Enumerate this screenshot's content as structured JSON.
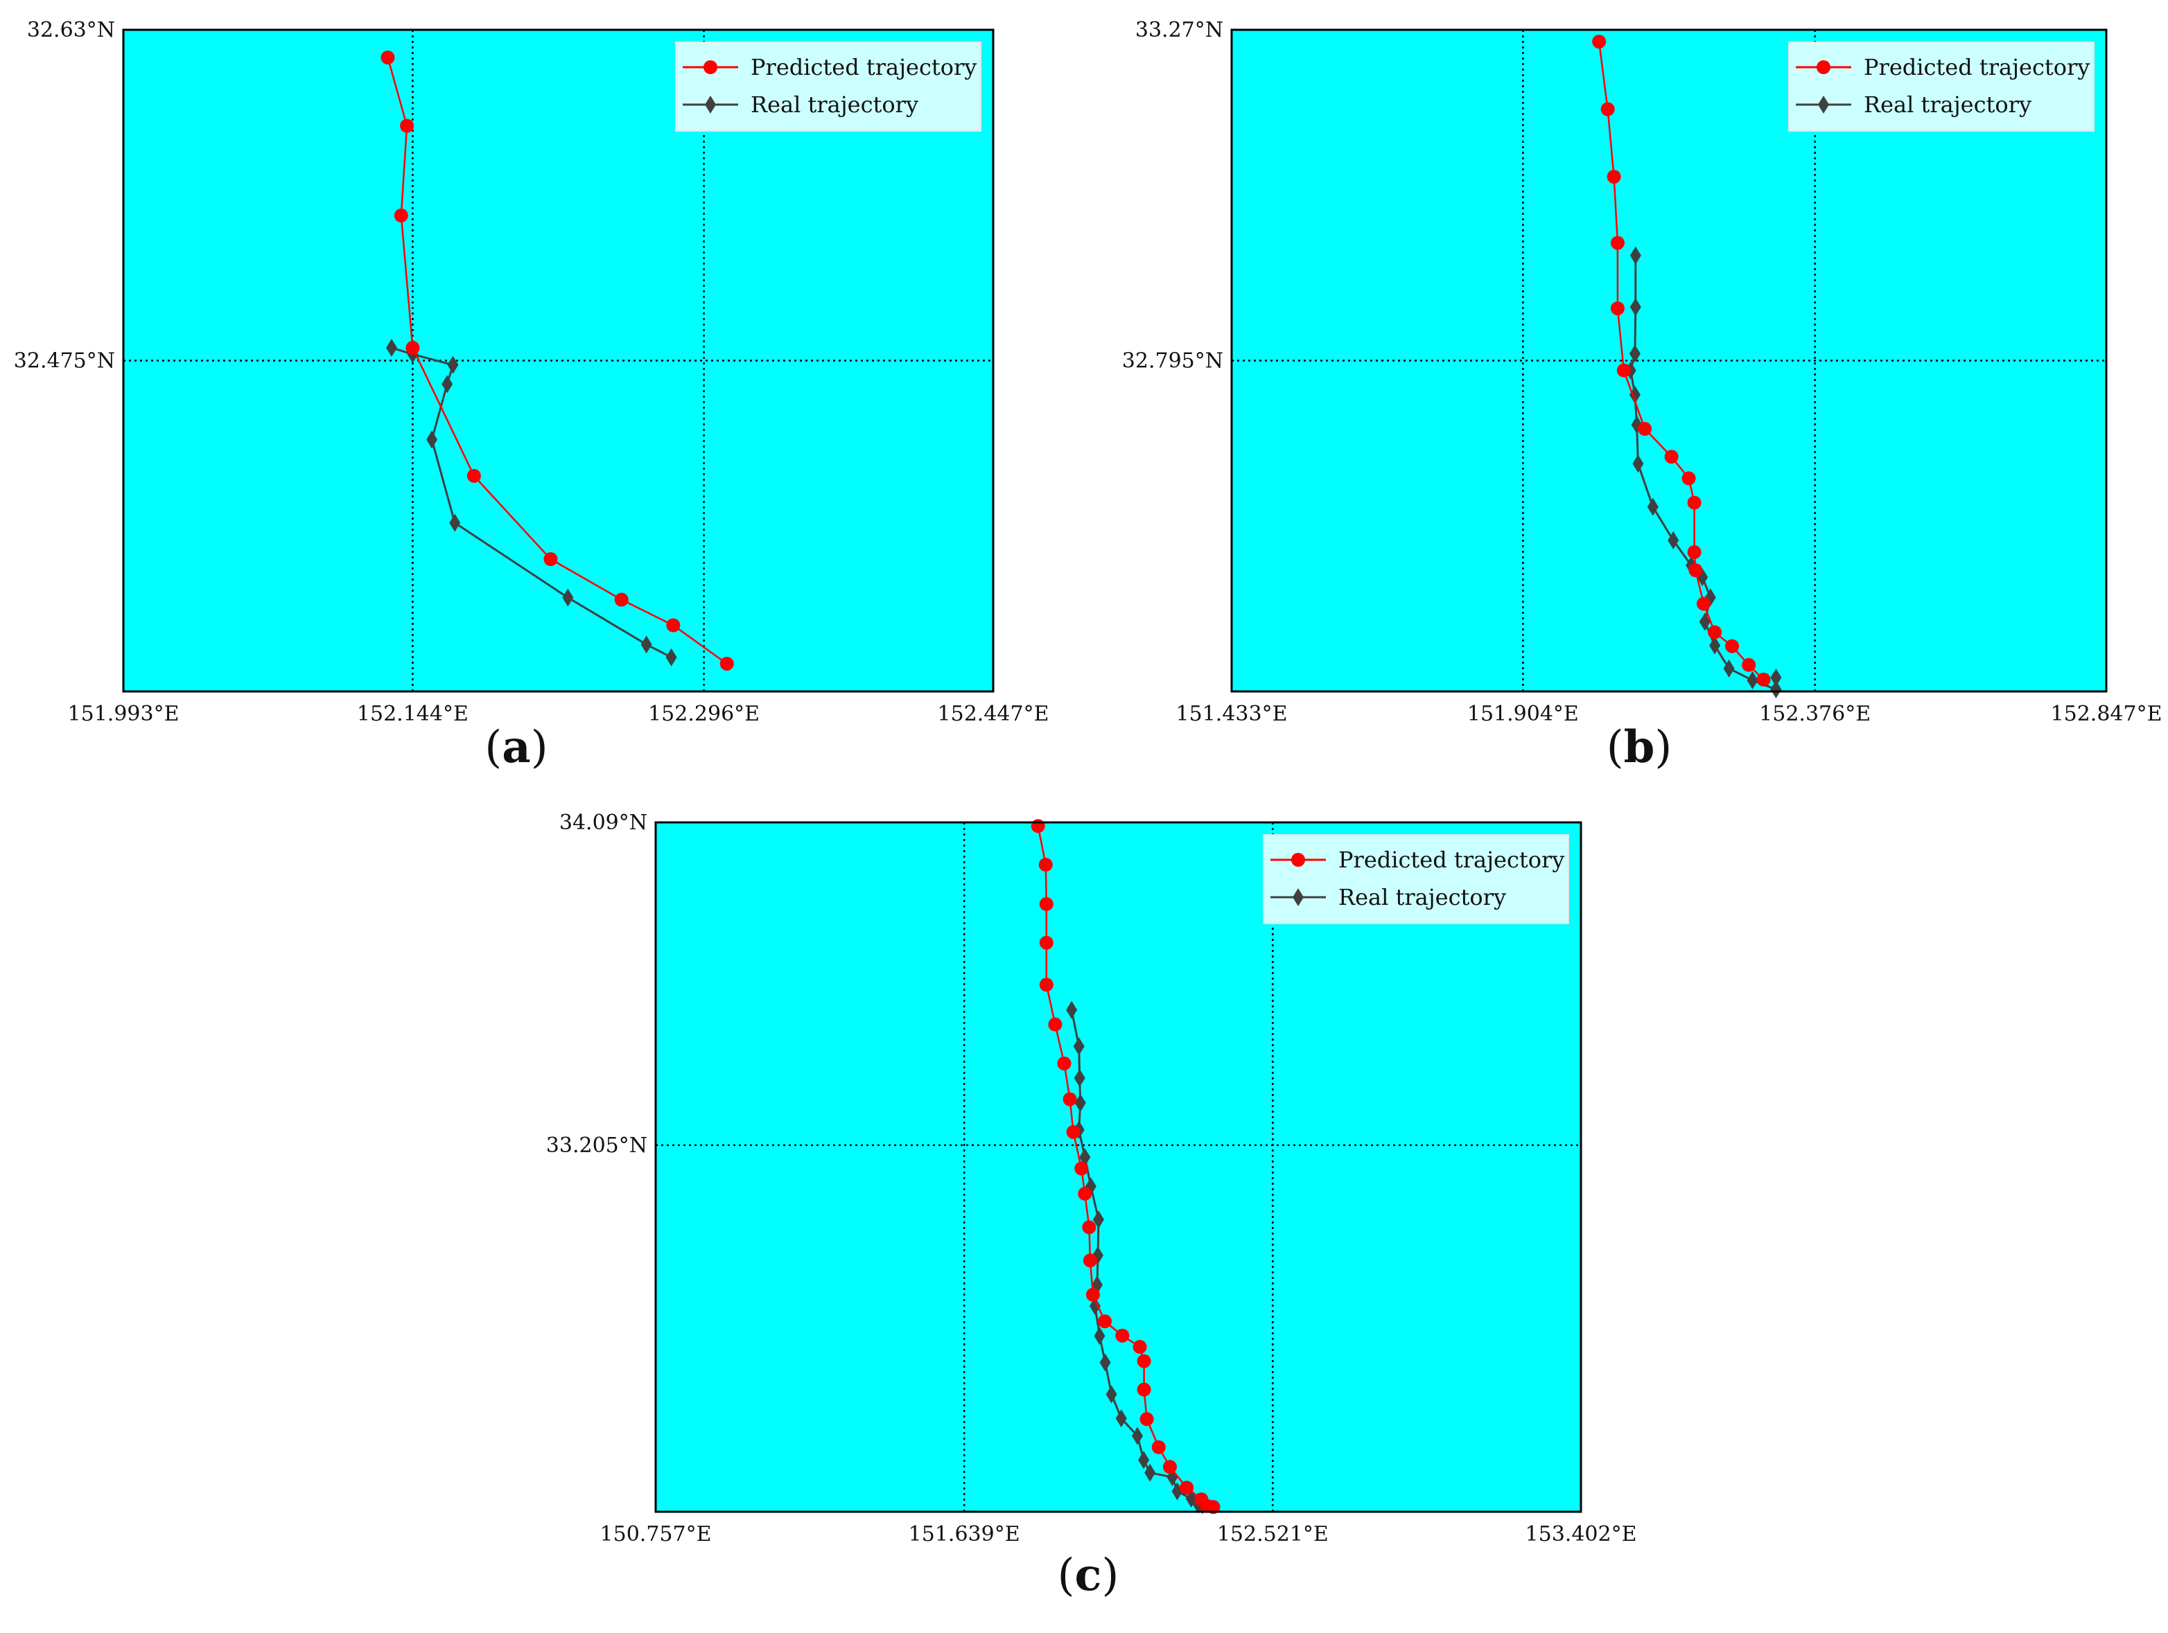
{
  "colors": {
    "background": "#00ffff",
    "predicted": "#ff0000",
    "real": "#404040",
    "legend_bg": "#ccffff",
    "grid": "#000000"
  },
  "chart_data": [
    {
      "panel": "a",
      "caption": {
        "open": "(",
        "letter": "a",
        "close": ")"
      },
      "type": "line",
      "xlim": [
        151.993,
        152.447
      ],
      "ylim": [
        32.32,
        32.63
      ],
      "xticks": [
        151.993,
        152.144,
        152.296,
        152.447
      ],
      "xtick_labels": [
        "151.993°E",
        "152.144°E",
        "152.296°E",
        "152.447°E"
      ],
      "yticks": [
        32.63,
        32.475
      ],
      "ytick_labels": [
        "32.63°N",
        "32.475°N"
      ],
      "grid": {
        "x": [
          152.144,
          152.296
        ],
        "y": [
          32.475
        ]
      },
      "legend": {
        "position": "top-right",
        "entries": [
          "Predicted trajectory",
          "Real trajectory"
        ]
      },
      "series": [
        {
          "name": "Predicted trajectory",
          "marker": "circle",
          "points": [
            [
              152.131,
              32.617
            ],
            [
              152.141,
              32.585
            ],
            [
              152.138,
              32.543
            ],
            [
              152.144,
              32.481
            ],
            [
              152.176,
              32.421
            ],
            [
              152.216,
              32.382
            ],
            [
              152.253,
              32.363
            ],
            [
              152.28,
              32.351
            ],
            [
              152.308,
              32.333
            ]
          ]
        },
        {
          "name": "Real trajectory",
          "marker": "diamond",
          "points": [
            [
              152.133,
              32.481
            ],
            [
              152.144,
              32.478
            ],
            [
              152.165,
              32.473
            ],
            [
              152.162,
              32.464
            ],
            [
              152.154,
              32.438
            ],
            [
              152.166,
              32.399
            ],
            [
              152.225,
              32.364
            ],
            [
              152.266,
              32.342
            ],
            [
              152.279,
              32.336
            ]
          ]
        }
      ]
    },
    {
      "panel": "b",
      "caption": {
        "open": "(",
        "letter": "b",
        "close": ")"
      },
      "type": "line",
      "xlim": [
        151.433,
        152.847
      ],
      "ylim": [
        32.32,
        33.27
      ],
      "xticks": [
        151.433,
        151.904,
        152.376,
        152.847
      ],
      "xtick_labels": [
        "151.433°E",
        "151.904°E",
        "152.376°E",
        "152.847°E"
      ],
      "yticks": [
        33.27,
        32.795
      ],
      "ytick_labels": [
        "33.27°N",
        "32.795°N"
      ],
      "grid": {
        "x": [
          151.904,
          152.376
        ],
        "y": [
          32.795
        ]
      },
      "legend": {
        "position": "top-right",
        "entries": [
          "Predicted trajectory",
          "Real trajectory"
        ]
      },
      "series": [
        {
          "name": "Predicted trajectory",
          "marker": "circle",
          "points": [
            [
              152.027,
              33.253
            ],
            [
              152.041,
              33.156
            ],
            [
              152.051,
              33.059
            ],
            [
              152.057,
              32.964
            ],
            [
              152.057,
              32.87
            ],
            [
              152.067,
              32.781
            ],
            [
              152.101,
              32.697
            ],
            [
              152.144,
              32.657
            ],
            [
              152.172,
              32.626
            ],
            [
              152.181,
              32.591
            ],
            [
              152.181,
              32.52
            ],
            [
              152.183,
              32.494
            ],
            [
              152.196,
              32.446
            ],
            [
              152.214,
              32.405
            ],
            [
              152.242,
              32.385
            ],
            [
              152.269,
              32.358
            ],
            [
              152.293,
              32.337
            ]
          ]
        },
        {
          "name": "Real trajectory",
          "marker": "diamond",
          "points": [
            [
              152.086,
              32.946
            ],
            [
              152.086,
              32.872
            ],
            [
              152.085,
              32.805
            ],
            [
              152.078,
              32.781
            ],
            [
              152.085,
              32.746
            ],
            [
              152.088,
              32.703
            ],
            [
              152.09,
              32.647
            ],
            [
              152.114,
              32.585
            ],
            [
              152.147,
              32.537
            ],
            [
              152.176,
              32.501
            ],
            [
              152.194,
              32.484
            ],
            [
              152.207,
              32.455
            ],
            [
              152.198,
              32.42
            ],
            [
              152.214,
              32.386
            ],
            [
              152.237,
              32.353
            ],
            [
              152.275,
              32.336
            ],
            [
              152.313,
              32.323
            ],
            [
              152.313,
              32.34
            ]
          ]
        }
      ]
    },
    {
      "panel": "c",
      "caption": {
        "open": "(",
        "letter": "c",
        "close": ")"
      },
      "type": "line",
      "xlim": [
        150.757,
        153.402
      ],
      "ylim": [
        32.2,
        34.09
      ],
      "xticks": [
        150.757,
        151.639,
        152.521,
        153.402
      ],
      "xtick_labels": [
        "150.757°E",
        "151.639°E",
        "152.521°E",
        "153.402°E"
      ],
      "yticks": [
        34.09,
        33.205
      ],
      "ytick_labels": [
        "34.09°N",
        "33.205°N"
      ],
      "grid": {
        "x": [
          151.639,
          152.521
        ],
        "y": [
          33.205
        ]
      },
      "legend": {
        "position": "top-right",
        "entries": [
          "Predicted trajectory",
          "Real trajectory"
        ]
      },
      "series": [
        {
          "name": "Predicted trajectory",
          "marker": "circle",
          "points": [
            [
              151.85,
              34.08
            ],
            [
              151.872,
              33.974
            ],
            [
              151.874,
              33.866
            ],
            [
              151.874,
              33.76
            ],
            [
              151.874,
              33.645
            ],
            [
              151.899,
              33.536
            ],
            [
              151.925,
              33.429
            ],
            [
              151.941,
              33.331
            ],
            [
              151.951,
              33.241
            ],
            [
              151.974,
              33.141
            ],
            [
              151.984,
              33.072
            ],
            [
              151.996,
              32.98
            ],
            [
              151.999,
              32.889
            ],
            [
              152.007,
              32.795
            ],
            [
              152.041,
              32.722
            ],
            [
              152.091,
              32.683
            ],
            [
              152.141,
              32.652
            ],
            [
              152.153,
              32.613
            ],
            [
              152.153,
              32.535
            ],
            [
              152.161,
              32.454
            ],
            [
              152.195,
              32.377
            ],
            [
              152.227,
              32.323
            ],
            [
              152.275,
              32.266
            ],
            [
              152.317,
              32.234
            ],
            [
              152.333,
              32.216
            ],
            [
              152.351,
              32.213
            ]
          ]
        },
        {
          "name": "Real trajectory",
          "marker": "diamond",
          "points": [
            [
              151.946,
              33.576
            ],
            [
              151.967,
              33.476
            ],
            [
              151.969,
              33.389
            ],
            [
              151.971,
              33.321
            ],
            [
              151.967,
              33.247
            ],
            [
              151.984,
              33.172
            ],
            [
              152.001,
              33.092
            ],
            [
              152.023,
              33.001
            ],
            [
              152.021,
              32.903
            ],
            [
              152.019,
              32.822
            ],
            [
              152.013,
              32.764
            ],
            [
              152.026,
              32.682
            ],
            [
              152.042,
              32.609
            ],
            [
              152.06,
              32.522
            ],
            [
              152.088,
              32.456
            ],
            [
              152.134,
              32.408
            ],
            [
              152.152,
              32.342
            ],
            [
              152.17,
              32.307
            ],
            [
              152.234,
              32.295
            ],
            [
              152.248,
              32.256
            ],
            [
              152.288,
              32.236
            ],
            [
              152.308,
              32.22
            ],
            [
              152.32,
              32.218
            ]
          ]
        }
      ]
    }
  ]
}
